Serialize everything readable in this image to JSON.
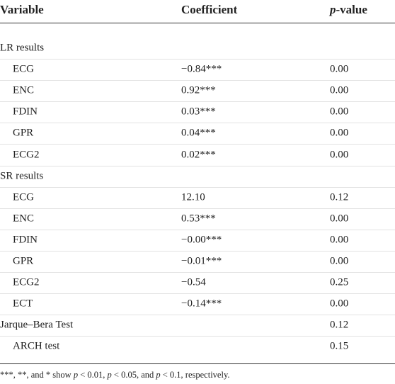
{
  "table": {
    "columns": [
      {
        "text": "Variable"
      },
      {
        "text": "Coefficient"
      },
      {
        "italic": "p",
        "text": "-value"
      }
    ],
    "rows": [
      {
        "label": "LR results",
        "indent": false
      },
      {
        "label": "ECG",
        "indent": true,
        "coefficient": "−0.84***",
        "p_value": "0.00"
      },
      {
        "label": "ENC",
        "indent": true,
        "coefficient": "0.92***",
        "p_value": "0.00"
      },
      {
        "label": "FDIN",
        "indent": true,
        "coefficient": "0.03***",
        "p_value": "0.00"
      },
      {
        "label": "GPR",
        "indent": true,
        "coefficient": "0.04***",
        "p_value": "0.00"
      },
      {
        "label": "ECG2",
        "indent": true,
        "coefficient": "0.02***",
        "p_value": "0.00"
      },
      {
        "label": "SR results",
        "indent": false
      },
      {
        "label": "ECG",
        "indent": true,
        "coefficient": "12.10",
        "p_value": "0.12"
      },
      {
        "label": "ENC",
        "indent": true,
        "coefficient": "0.53***",
        "p_value": "0.00"
      },
      {
        "label": "FDIN",
        "indent": true,
        "coefficient": "−0.00***",
        "p_value": "0.00"
      },
      {
        "label": "GPR",
        "indent": true,
        "coefficient": "−0.01***",
        "p_value": "0.00"
      },
      {
        "label": "ECG2",
        "indent": true,
        "coefficient": "−0.54",
        "p_value": "0.25"
      },
      {
        "label": "ECT",
        "indent": true,
        "coefficient": "−0.14***",
        "p_value": "0.00"
      },
      {
        "label": "Jarque–Bera Test",
        "indent": false,
        "p_value": "0.12"
      },
      {
        "label": "ARCH test",
        "indent": true,
        "p_value": "0.15"
      }
    ],
    "footnote": [
      "***, **, and * show ",
      "p",
      " < 0.01, ",
      "p",
      " < 0.05, and ",
      "p",
      " < 0.1, respectively."
    ]
  }
}
